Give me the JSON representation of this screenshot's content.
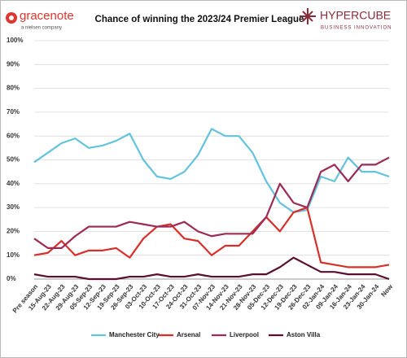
{
  "header": {
    "left_logo": "gracenote",
    "left_tagline": "a nielsen company",
    "right_logo": "HYPERCUBE",
    "right_tagline": "BUSINESS INNOVATION"
  },
  "chart_data": {
    "type": "line",
    "title": "Chance of winning the 2023/24 Premier League",
    "categories": [
      "Pre season",
      "15-Aug-23",
      "22-Aug-23",
      "29-Aug-23",
      "05-Sep-23",
      "12-Sep-23",
      "19-Sep-23",
      "26-Sep-23",
      "03-Oct-23",
      "10-Oct-23",
      "17-Oct-23",
      "24-Oct-23",
      "31-Oct-23",
      "07-Nov-23",
      "14-Nov-23",
      "21-Nov-23",
      "28-Nov-23",
      "05-Dec-23",
      "12-Dec-23",
      "19-Dec-23",
      "26-Dec-23",
      "02-Jan-24",
      "09-Jan-24",
      "16-Jan-24",
      "23-Jan-24",
      "30-Jan-24",
      "Now"
    ],
    "series": [
      {
        "name": "Manchester City",
        "color": "#63c3dc",
        "values": [
          49,
          53,
          57,
          59,
          55,
          56,
          58,
          61,
          50,
          43,
          42,
          45,
          52,
          63,
          60,
          60,
          53,
          41,
          32,
          28,
          29,
          43,
          41,
          51,
          45,
          45,
          43
        ]
      },
      {
        "name": "Arsenal",
        "color": "#d7302a",
        "values": [
          10,
          11,
          16,
          10,
          12,
          12,
          13,
          9,
          17,
          22,
          23,
          17,
          16,
          10,
          14,
          14,
          20,
          26,
          20,
          28,
          30,
          7,
          6,
          5,
          5,
          5,
          6
        ]
      },
      {
        "name": "Liverpool",
        "color": "#9c2b55",
        "values": [
          17,
          13,
          13,
          18,
          22,
          22,
          22,
          24,
          23,
          22,
          22,
          24,
          20,
          18,
          19,
          19,
          19,
          26,
          40,
          32,
          30,
          45,
          48,
          41,
          48,
          48,
          51
        ]
      },
      {
        "name": "Aston Villa",
        "color": "#5a0f2e",
        "values": [
          2,
          1,
          1,
          1,
          0,
          0,
          0,
          1,
          1,
          2,
          1,
          1,
          2,
          1,
          1,
          1,
          2,
          2,
          5,
          9,
          6,
          3,
          3,
          2,
          2,
          2,
          0
        ]
      }
    ],
    "ylim": [
      0,
      100
    ],
    "yticks": [
      {
        "value": 0,
        "label": "0%"
      },
      {
        "value": 10,
        "label": "10%"
      },
      {
        "value": 20,
        "label": "20%"
      },
      {
        "value": 30,
        "label": "30%"
      },
      {
        "value": 40,
        "label": "40%"
      },
      {
        "value": 50,
        "label": "50%"
      },
      {
        "value": 60,
        "label": "60%"
      },
      {
        "value": 70,
        "label": "70%"
      },
      {
        "value": 80,
        "label": "80%"
      },
      {
        "value": 90,
        "label": "90%"
      },
      {
        "value": 100,
        "label": "100%"
      }
    ],
    "grid": true,
    "legend": "bottom"
  }
}
